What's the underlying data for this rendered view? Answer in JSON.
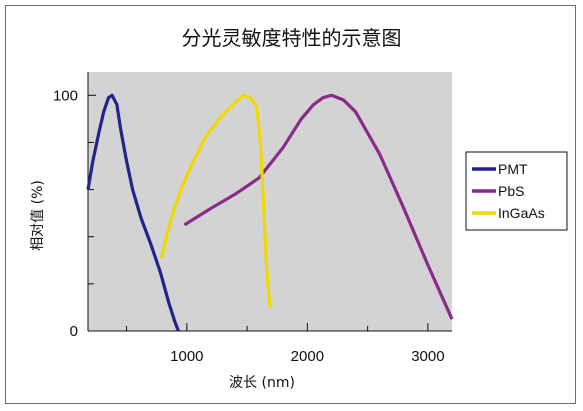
{
  "chart_data": {
    "type": "line",
    "title": "分光灵敏度特性的示意图",
    "xlabel": "波长 (nm)",
    "ylabel": "相对值 (%)",
    "xlim": [
      180,
      3200
    ],
    "ylim": [
      0,
      100
    ],
    "x_ticks": [
      1000,
      2000,
      3000
    ],
    "x_tick_labels": [
      "1000",
      "2000",
      "3000"
    ],
    "y_ticks": [
      0,
      100
    ],
    "y_tick_labels": [
      "0",
      "100"
    ],
    "y_minor_ticks": [
      20,
      40,
      60,
      80
    ],
    "x_minor_ticks": [
      500,
      1500,
      2500
    ],
    "grid": false,
    "legend_position": "right",
    "series": [
      {
        "name": "PMT",
        "color": "#23238a",
        "x": [
          180,
          220,
          270,
          310,
          350,
          380,
          420,
          450,
          500,
          550,
          620,
          700,
          780,
          850,
          900,
          930
        ],
        "y": [
          60,
          72,
          84,
          93,
          99,
          100,
          96,
          86,
          72,
          60,
          48,
          37,
          25,
          12,
          4,
          0
        ]
      },
      {
        "name": "PbS",
        "color": "#8a2a8a",
        "x": [
          980,
          1200,
          1400,
          1600,
          1800,
          1950,
          2050,
          2130,
          2200,
          2300,
          2400,
          2600,
          2800,
          3000,
          3200
        ],
        "y": [
          45,
          52,
          58,
          65,
          78,
          90,
          96,
          99,
          100,
          98,
          93,
          75,
          52,
          28,
          5
        ]
      },
      {
        "name": "InGaAs",
        "color": "#f0d800",
        "x": [
          790,
          830,
          900,
          1000,
          1150,
          1300,
          1400,
          1470,
          1530,
          1580,
          1610,
          1640,
          1660,
          1690
        ],
        "y": [
          31,
          40,
          53,
          66,
          82,
          92,
          97,
          100,
          99,
          95,
          80,
          50,
          28,
          10
        ]
      }
    ]
  }
}
